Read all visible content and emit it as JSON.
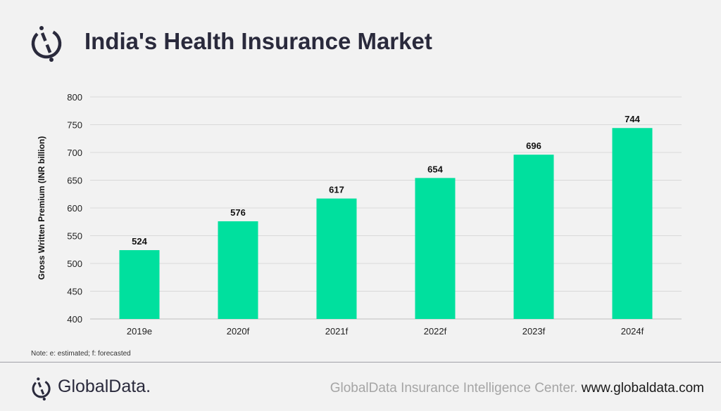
{
  "title": "India's Health Insurance Market",
  "note": "Note: e: estimated;  f: forecasted",
  "footer": {
    "brand": "GlobalData.",
    "source": "GlobalData Insurance Intelligence Center.",
    "url": "www.globaldata.com"
  },
  "colors": {
    "bar": "#00e09e",
    "title": "#2a2a3c"
  },
  "chart_data": {
    "type": "bar",
    "title": "India's Health Insurance Market",
    "xlabel": "",
    "ylabel": "Gross Written Premium (INR billion)",
    "categories": [
      "2019e",
      "2020f",
      "2021f",
      "2022f",
      "2023f",
      "2024f"
    ],
    "values": [
      524,
      576,
      617,
      654,
      696,
      744
    ],
    "ylim": [
      400,
      800
    ],
    "yticks": [
      400,
      450,
      500,
      550,
      600,
      650,
      700,
      750,
      800
    ],
    "grid": true,
    "data_labels": true
  }
}
